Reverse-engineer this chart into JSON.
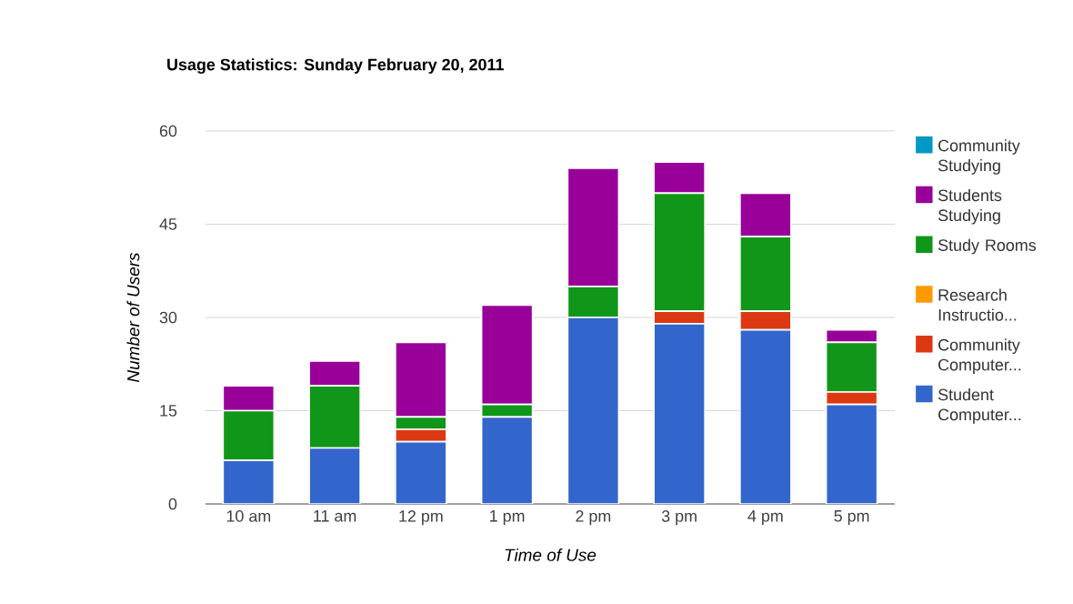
{
  "chart_data": {
    "type": "bar",
    "stacked": true,
    "title": "Usage Statistics: Sunday February 20, 2011",
    "xlabel": "Time of Use",
    "ylabel": "Number of Users",
    "categories": [
      "10 am",
      "11 am",
      "12 pm",
      "1 pm",
      "2 pm",
      "3 pm",
      "4 pm",
      "5 pm"
    ],
    "series": [
      {
        "name": "Student Computer...",
        "color": "#3366cc",
        "values": [
          7,
          9,
          10,
          14,
          30,
          29,
          28,
          16
        ]
      },
      {
        "name": "Community Computer...",
        "color": "#dc3912",
        "values": [
          0,
          0,
          2,
          0,
          0,
          2,
          3,
          2
        ]
      },
      {
        "name": "Research Instructio...",
        "color": "#ff9900",
        "values": [
          0,
          0,
          0,
          0,
          0,
          0,
          0,
          0
        ]
      },
      {
        "name": "Study Rooms",
        "color": "#109618",
        "values": [
          8,
          10,
          2,
          2,
          5,
          19,
          12,
          8
        ]
      },
      {
        "name": "Students Studying",
        "color": "#990099",
        "values": [
          4,
          4,
          12,
          16,
          19,
          5,
          7,
          2
        ]
      },
      {
        "name": "Community Studying",
        "color": "#0099c6",
        "values": [
          0,
          0,
          0,
          0,
          0,
          0,
          0,
          0
        ]
      }
    ],
    "ylim": [
      0,
      60
    ],
    "yticks": [
      0,
      15,
      30,
      45,
      60
    ],
    "grid": "y",
    "legend": "right"
  }
}
